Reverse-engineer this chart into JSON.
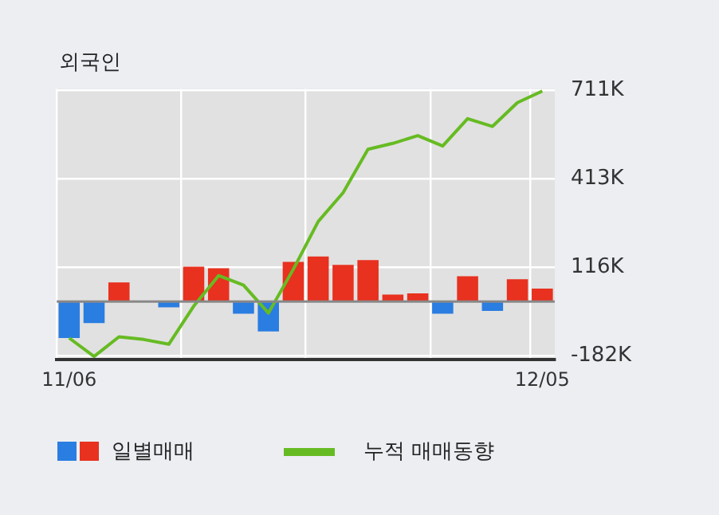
{
  "chart_data": {
    "type": "bar",
    "title": "외국인",
    "categories": [
      "11/06",
      null,
      null,
      null,
      null,
      null,
      null,
      null,
      null,
      null,
      null,
      null,
      null,
      null,
      null,
      null,
      null,
      null,
      null,
      "12/05"
    ],
    "series": [
      {
        "name": "일별매매",
        "colors": [
          "#2a7de1",
          "#2a7de1",
          "#e8311f",
          "#2a7de1",
          "#2a7de1",
          "#e8311f",
          "#e8311f",
          "#2a7de1",
          "#2a7de1",
          "#e8311f",
          "#e8311f",
          "#e8311f",
          "#e8311f",
          "#e8311f",
          "#e8311f",
          "#2a7de1",
          "#e8311f",
          "#2a7de1",
          "#e8311f",
          "#e8311f"
        ],
        "values": [
          -123000,
          -73000,
          64000,
          null,
          -20000,
          117000,
          112000,
          -41000,
          -101000,
          133000,
          151000,
          123000,
          139000,
          23000,
          27000,
          -41000,
          85000,
          -32000,
          75000,
          43000
        ]
      },
      {
        "name": "누적 매매동향",
        "type": "line",
        "color": "#66bb22",
        "values": [
          -123000,
          -185000,
          -119000,
          -128000,
          -144000,
          -16000,
          87000,
          55000,
          -39000,
          108000,
          269000,
          366000,
          512000,
          532000,
          558000,
          523000,
          615000,
          589000,
          669000,
          708000
        ]
      }
    ],
    "ylim": [
      -196000,
      715000
    ],
    "yticks": [
      {
        "value": -182000,
        "label": "-182K"
      },
      {
        "value": 116000,
        "label": "116K"
      },
      {
        "value": 413000,
        "label": "413K"
      },
      {
        "value": 711000,
        "label": "711K"
      }
    ],
    "grid": true,
    "legend": "bottom",
    "marker": "none"
  }
}
